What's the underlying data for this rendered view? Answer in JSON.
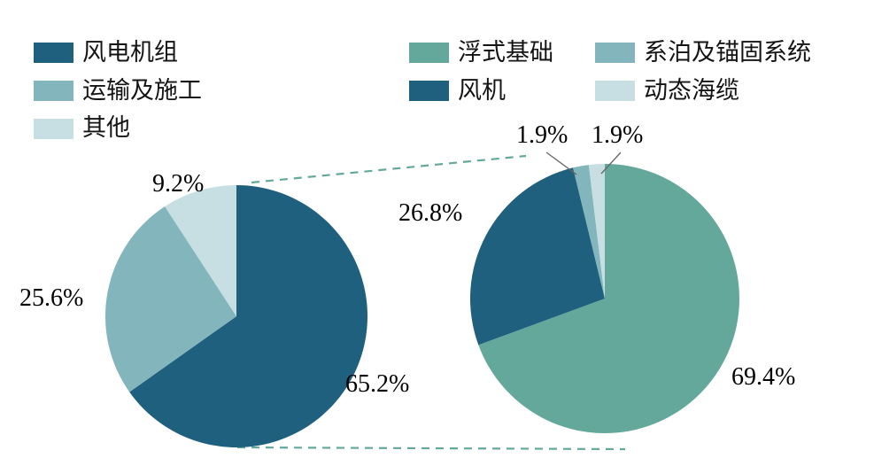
{
  "figure": {
    "background": "#ffffff"
  },
  "legend": {
    "columns": [
      {
        "items": [
          {
            "label": "风电机组",
            "color": "#20607f"
          },
          {
            "label": "运输及施工",
            "color": "#83b5bc"
          },
          {
            "label": "其他",
            "color": "#c7dee2"
          }
        ]
      },
      {
        "items": [
          {
            "label": "浮式基础",
            "color": "#63a89b"
          },
          {
            "label": "风机",
            "color": "#20607f"
          }
        ]
      },
      {
        "items": [
          {
            "label": "系泊及锚固系统",
            "color": "#83b5bc"
          },
          {
            "label": "动态海缆",
            "color": "#c7dee2"
          }
        ]
      }
    ]
  },
  "chart_data": [
    {
      "type": "pie",
      "name": "total-cost-breakdown",
      "start_angle_deg": 0,
      "direction": "clockwise",
      "slices": [
        {
          "label": "风电机组",
          "value": 65.2,
          "display": "65.2%",
          "color": "#20607f"
        },
        {
          "label": "运输及施工",
          "value": 25.6,
          "display": "25.6%",
          "color": "#83b5bc"
        },
        {
          "label": "其他",
          "value": 9.2,
          "display": "9.2%",
          "color": "#c7dee2"
        }
      ]
    },
    {
      "type": "pie",
      "name": "turbine-unit-cost-breakdown",
      "start_angle_deg": 0,
      "direction": "clockwise",
      "slices": [
        {
          "label": "浮式基础",
          "value": 69.4,
          "display": "69.4%",
          "color": "#63a89b"
        },
        {
          "label": "风机",
          "value": 26.8,
          "display": "26.8%",
          "color": "#20607f"
        },
        {
          "label": "系泊及锚固系统",
          "value": 1.9,
          "display": "1.9%",
          "color": "#83b5bc"
        },
        {
          "label": "动态海缆",
          "value": 1.9,
          "display": "1.9%",
          "color": "#c7dee2"
        }
      ]
    }
  ],
  "connector": {
    "color": "#63a89b"
  }
}
